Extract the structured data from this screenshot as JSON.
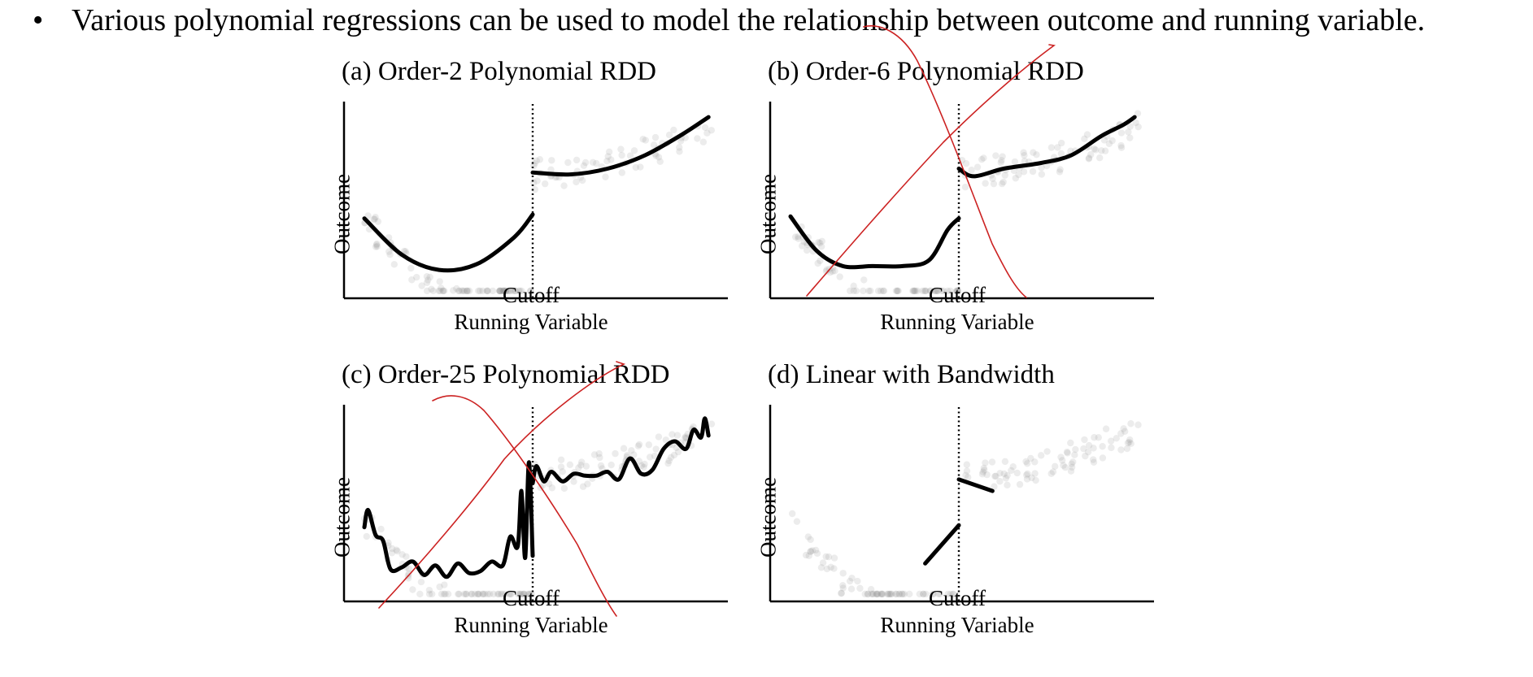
{
  "bullet": {
    "symbol": "•",
    "text": "Various polynomial regressions can be used to model the relationship between outcome and running variable."
  },
  "chart_data": [
    {
      "type": "scatter",
      "title": "(a) Order-2 Polynomial RDD",
      "xlabel": "Running Variable",
      "ylabel": "Outcome",
      "cutoff_label": "Cutoff",
      "cutoff": 0.5,
      "xlim": [
        0,
        1
      ],
      "ylim": [
        0,
        1
      ],
      "fit": "order-2 polynomial",
      "fit_left": {
        "x": [
          0.05,
          0.15,
          0.25,
          0.35,
          0.45,
          0.5
        ],
        "y": [
          0.41,
          0.22,
          0.14,
          0.17,
          0.31,
          0.43
        ]
      },
      "fit_right": {
        "x": [
          0.5,
          0.6,
          0.7,
          0.8,
          0.9,
          0.97
        ],
        "y": [
          0.65,
          0.64,
          0.67,
          0.74,
          0.85,
          0.94
        ]
      }
    },
    {
      "type": "scatter",
      "title": "(b) Order-6 Polynomial RDD",
      "xlabel": "Running Variable",
      "ylabel": "Outcome",
      "cutoff_label": "Cutoff",
      "cutoff": 0.5,
      "xlim": [
        0,
        1
      ],
      "ylim": [
        0,
        1
      ],
      "fit": "order-6 polynomial",
      "fit_left": {
        "x": [
          0.05,
          0.12,
          0.19,
          0.27,
          0.35,
          0.42,
          0.47,
          0.5
        ],
        "y": [
          0.42,
          0.24,
          0.16,
          0.16,
          0.16,
          0.19,
          0.35,
          0.41
        ]
      },
      "fit_right": {
        "x": [
          0.5,
          0.54,
          0.62,
          0.72,
          0.8,
          0.88,
          0.94,
          0.97
        ],
        "y": [
          0.67,
          0.63,
          0.67,
          0.7,
          0.74,
          0.84,
          0.9,
          0.94
        ]
      }
    },
    {
      "type": "scatter",
      "title": "(c) Order-25 Polynomial RDD",
      "xlabel": "Running Variable",
      "ylabel": "Outcome",
      "cutoff_label": "Cutoff",
      "cutoff": 0.5,
      "xlim": [
        0,
        1
      ],
      "ylim": [
        0,
        1
      ],
      "fit": "order-25 polynomial",
      "fit_left": {
        "x": [
          0.05,
          0.06,
          0.08,
          0.1,
          0.12,
          0.15,
          0.18,
          0.21,
          0.24,
          0.27,
          0.3,
          0.33,
          0.36,
          0.39,
          0.42,
          0.44,
          0.46,
          0.47,
          0.48,
          0.49,
          0.5
        ],
        "y": [
          0.38,
          0.47,
          0.34,
          0.31,
          0.16,
          0.17,
          0.2,
          0.13,
          0.18,
          0.12,
          0.19,
          0.14,
          0.15,
          0.2,
          0.18,
          0.33,
          0.28,
          0.57,
          0.22,
          0.72,
          0.23
        ]
      },
      "fit_right": {
        "x": [
          0.5,
          0.51,
          0.53,
          0.55,
          0.58,
          0.61,
          0.64,
          0.67,
          0.7,
          0.73,
          0.76,
          0.79,
          0.82,
          0.85,
          0.88,
          0.91,
          0.93,
          0.95,
          0.96,
          0.97
        ],
        "y": [
          0.61,
          0.7,
          0.62,
          0.67,
          0.62,
          0.66,
          0.65,
          0.65,
          0.67,
          0.63,
          0.74,
          0.66,
          0.68,
          0.79,
          0.83,
          0.79,
          0.89,
          0.85,
          0.95,
          0.86
        ]
      }
    },
    {
      "type": "scatter",
      "title": "(d) Linear with Bandwidth",
      "xlabel": "Running Variable",
      "ylabel": "Outcome",
      "cutoff_label": "Cutoff",
      "cutoff": 0.5,
      "xlim": [
        0,
        1
      ],
      "ylim": [
        0,
        1
      ],
      "fit": "local linear within bandwidth",
      "fit_left": {
        "x": [
          0.41,
          0.5
        ],
        "y": [
          0.19,
          0.39
        ]
      },
      "fit_right": {
        "x": [
          0.5,
          0.59
        ],
        "y": [
          0.63,
          0.57
        ]
      }
    }
  ],
  "annotation_color": "#cc2222"
}
